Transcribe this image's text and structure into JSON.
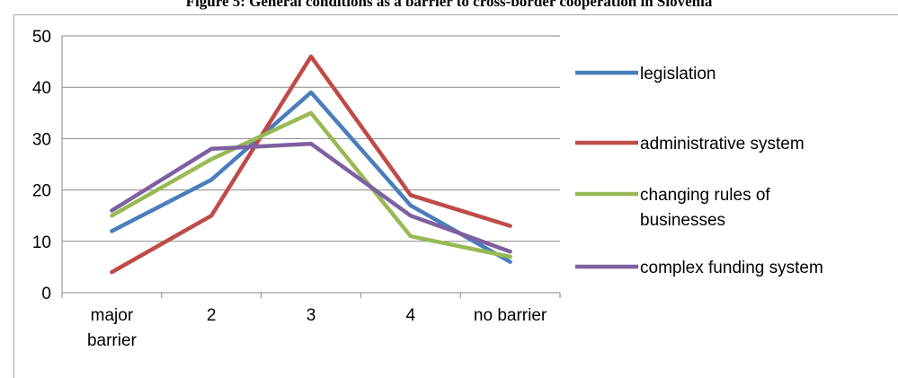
{
  "figure_title": "Figure 5: General conditions as a barrier to cross-border cooperation in Slovenia",
  "chart_data": {
    "type": "line",
    "categories": [
      [
        "major",
        "barrier"
      ],
      [
        "2"
      ],
      [
        "3"
      ],
      [
        "4"
      ],
      [
        "no barrier"
      ]
    ],
    "ylim": [
      0,
      50
    ],
    "yticks": [
      "0",
      "10",
      "20",
      "30",
      "40",
      "50"
    ],
    "grid": true,
    "legend_position": "right",
    "series": [
      {
        "name": [
          "legislation"
        ],
        "color": "#4a7ebb",
        "values": [
          12,
          22,
          39,
          17,
          6
        ]
      },
      {
        "name": [
          "administrative system"
        ],
        "color": "#be4b48",
        "values": [
          4,
          15,
          46,
          19,
          13
        ]
      },
      {
        "name": [
          "changing rules of",
          "businesses"
        ],
        "color": "#98b954",
        "values": [
          15,
          26,
          35,
          11,
          7
        ]
      },
      {
        "name": [
          "complex funding system"
        ],
        "color": "#7d60a0",
        "values": [
          16,
          28,
          29,
          15,
          8
        ]
      }
    ]
  }
}
